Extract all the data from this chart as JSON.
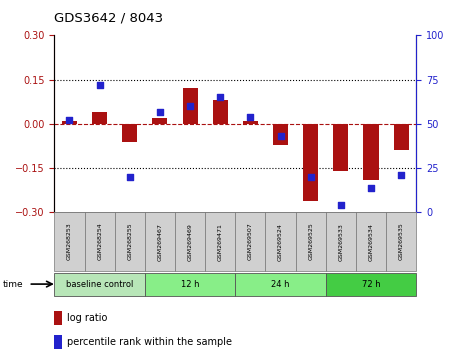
{
  "title": "GDS3642 / 8043",
  "samples": [
    "GSM268253",
    "GSM268254",
    "GSM268255",
    "GSM269467",
    "GSM269469",
    "GSM269471",
    "GSM269507",
    "GSM269524",
    "GSM269525",
    "GSM269533",
    "GSM269534",
    "GSM269535"
  ],
  "log_ratio": [
    0.01,
    0.04,
    -0.06,
    0.02,
    0.12,
    0.08,
    0.01,
    -0.07,
    -0.26,
    -0.16,
    -0.19,
    -0.09
  ],
  "percentile_rank": [
    52,
    72,
    20,
    57,
    60,
    65,
    54,
    43,
    20,
    4,
    14,
    21
  ],
  "log_ratio_color": "#aa1111",
  "percentile_color": "#2222cc",
  "ylim_left": [
    -0.3,
    0.3
  ],
  "ylim_right": [
    0,
    100
  ],
  "yticks_left": [
    -0.3,
    -0.15,
    0.0,
    0.15,
    0.3
  ],
  "yticks_right": [
    0,
    25,
    50,
    75,
    100
  ],
  "group_boundaries": [
    {
      "label": "baseline control",
      "start": 0,
      "end": 3,
      "color": "#b8e6b8"
    },
    {
      "label": "12 h",
      "start": 3,
      "end": 6,
      "color": "#88ee88"
    },
    {
      "label": "24 h",
      "start": 6,
      "end": 9,
      "color": "#88ee88"
    },
    {
      "label": "72 h",
      "start": 9,
      "end": 12,
      "color": "#44cc44"
    }
  ],
  "bar_width": 0.5,
  "sq_size": 18
}
